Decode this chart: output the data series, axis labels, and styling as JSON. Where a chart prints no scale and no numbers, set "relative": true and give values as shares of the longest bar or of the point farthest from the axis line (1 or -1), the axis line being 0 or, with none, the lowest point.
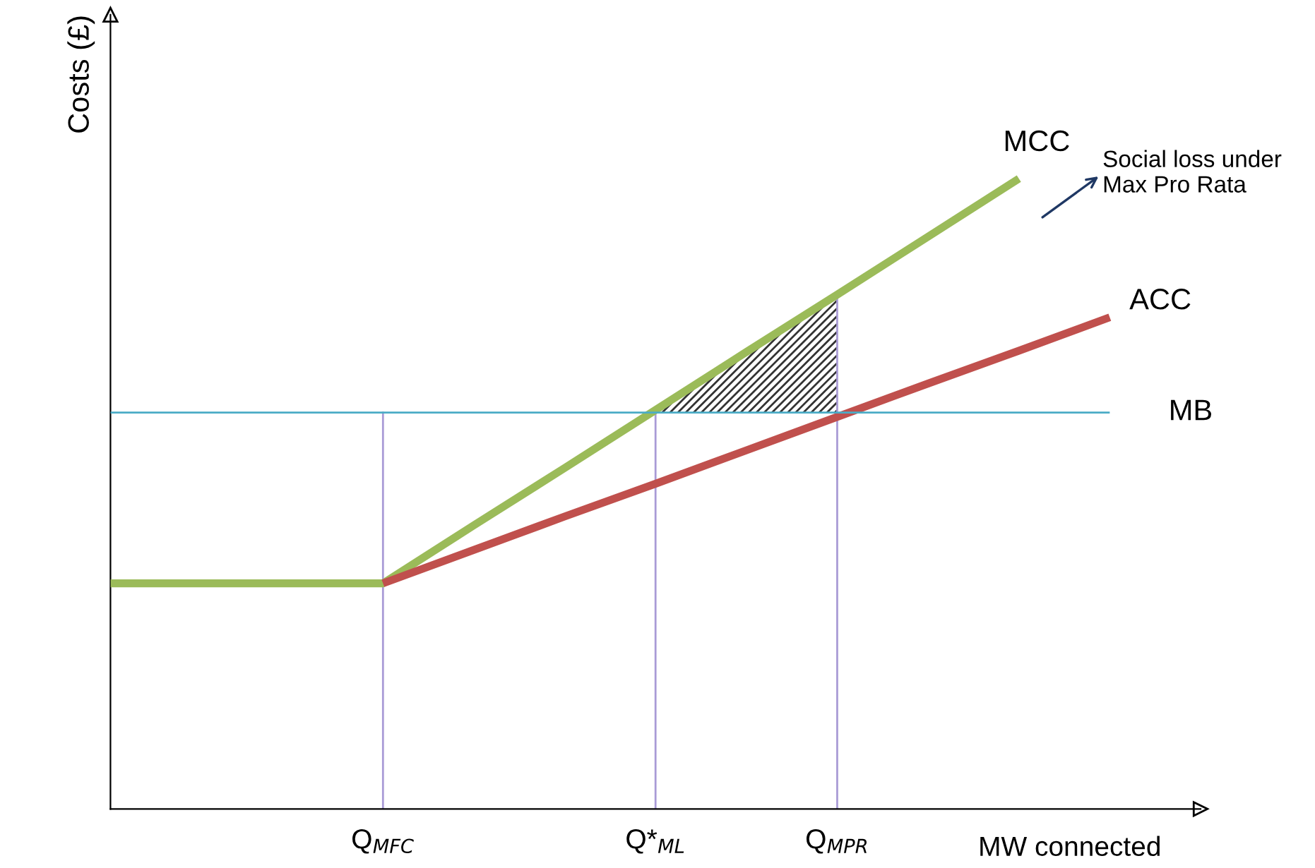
{
  "chart_data": {
    "type": "line",
    "relative": true,
    "ylabel": "Costs (£)",
    "xlabel": "MW connected",
    "categories": [
      null,
      null,
      null,
      "Q$_{MFC}$",
      null,
      null,
      "Q*$_{ML}$",
      null,
      "Q$_{MPR}$",
      null,
      null,
      null
    ],
    "series": [
      {
        "name": "MCC",
        "color": "#9bbb59",
        "values": [
          0.358,
          0.358,
          0.358,
          0.358,
          0.45,
          0.541,
          0.633,
          0.725,
          0.816,
          0.908,
          1,
          null
        ]
      },
      {
        "name": "ACC",
        "color": "#c0504d",
        "values": [
          null,
          null,
          null,
          0.358,
          0.411,
          0.464,
          0.516,
          0.569,
          0.622,
          0.675,
          0.727,
          0.78
        ]
      },
      {
        "name": "MB",
        "color": "#4bacc6",
        "values": [
          0.629,
          0.629,
          0.629,
          0.629,
          0.629,
          0.629,
          0.629,
          0.629,
          0.629,
          0.629,
          0.629,
          0.629
        ]
      }
    ],
    "ref_lines": [
      {
        "axis": "x",
        "value": "Q$_{MFC}$",
        "color": "#a99bd6"
      },
      {
        "axis": "x",
        "value": "Q*$_{ML}$",
        "color": "#a99bd6"
      },
      {
        "axis": "x",
        "value": "Q$_{MPR}$",
        "color": "#a99bd6"
      }
    ],
    "annotations": [
      "Social loss under Max Pro Rata"
    ],
    "legend": false,
    "grid": false
  }
}
